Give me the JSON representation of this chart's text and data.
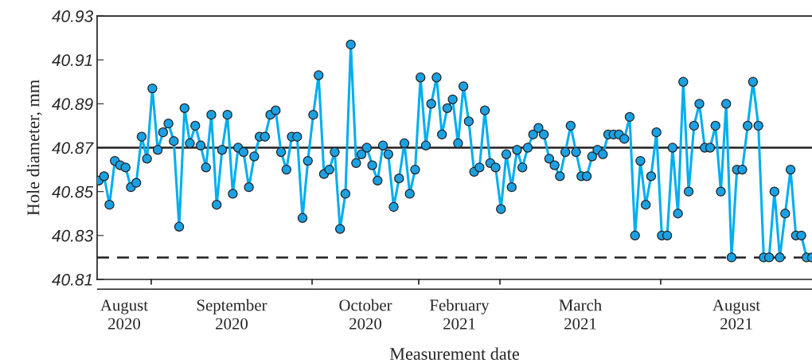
{
  "chart_data": {
    "type": "line",
    "xlabel": "Measurement date",
    "ylabel": "Hole diameter, mm",
    "categories": [
      null,
      null,
      null,
      null,
      null,
      null,
      null,
      null,
      null,
      null,
      null,
      null,
      null,
      null,
      null,
      null,
      null,
      null,
      null,
      null,
      null,
      null,
      null,
      null,
      null,
      null,
      null,
      null,
      null,
      null,
      null,
      null,
      null,
      null,
      null,
      null,
      null,
      null,
      null,
      null,
      null,
      null,
      null,
      null,
      null,
      null,
      null,
      null,
      null,
      null,
      null,
      null,
      null,
      null,
      null,
      null,
      null,
      null,
      null,
      null,
      null,
      null,
      null,
      null,
      null,
      null,
      null,
      null,
      null,
      null,
      null,
      null,
      null,
      null,
      null,
      null,
      null,
      null,
      null,
      null,
      null,
      null,
      null,
      null,
      null,
      null,
      null,
      null,
      null,
      null,
      null,
      null,
      null,
      null,
      null,
      null,
      null,
      null,
      null,
      null,
      null,
      null,
      null,
      null,
      null,
      null,
      null,
      null,
      null,
      null,
      null,
      null,
      null,
      null,
      null,
      null,
      null,
      null,
      null,
      null,
      null,
      null,
      null,
      null,
      null,
      null,
      null,
      null,
      null,
      null,
      null,
      null,
      null,
      null
    ],
    "series": [
      {
        "color": "#00aeef",
        "values": [
          40.855,
          40.857,
          40.844,
          40.864,
          40.862,
          40.861,
          40.852,
          40.854,
          40.875,
          40.865,
          40.897,
          40.869,
          40.877,
          40.881,
          40.873,
          40.834,
          40.888,
          40.872,
          40.88,
          40.871,
          40.861,
          40.885,
          40.844,
          40.869,
          40.885,
          40.849,
          40.87,
          40.868,
          40.852,
          40.866,
          40.875,
          40.875,
          40.885,
          40.887,
          40.868,
          40.86,
          40.875,
          40.875,
          40.838,
          40.864,
          40.885,
          40.903,
          40.858,
          40.86,
          40.868,
          40.833,
          40.849,
          40.917,
          40.863,
          40.867,
          40.87,
          40.862,
          40.855,
          40.871,
          40.867,
          40.843,
          40.856,
          40.872,
          40.849,
          40.86,
          40.902,
          40.871,
          40.89,
          40.902,
          40.876,
          40.888,
          40.892,
          40.872,
          40.898,
          40.882,
          40.859,
          40.861,
          40.887,
          40.863,
          40.861,
          40.842,
          40.867,
          40.852,
          40.869,
          40.861,
          40.87,
          40.876,
          40.879,
          40.876,
          40.865,
          40.862,
          40.857,
          40.868,
          40.88,
          40.868,
          40.857,
          40.857,
          40.866,
          40.869,
          40.867,
          40.876,
          40.876,
          40.876,
          40.874,
          40.884,
          40.83,
          40.864,
          40.844,
          40.857,
          40.877,
          40.83,
          40.83,
          40.87,
          40.84,
          40.9,
          40.85,
          40.88,
          40.89,
          40.87,
          40.87,
          40.88,
          40.85,
          40.89,
          40.82,
          40.86,
          40.86,
          40.88,
          40.9,
          40.88,
          40.82,
          40.82,
          40.85,
          40.82,
          40.84,
          40.86,
          40.83,
          40.83,
          40.82,
          40.82
        ]
      }
    ],
    "ylim": [
      40.81,
      40.93
    ],
    "yticks": [
      40.81,
      40.83,
      40.85,
      40.87,
      40.89,
      40.91,
      40.93
    ],
    "ref_lines": [
      {
        "axis": "y",
        "value": 40.87,
        "color": "#231f20",
        "line_style": "solid"
      },
      {
        "axis": "y",
        "value": 40.82,
        "color": "#231f20",
        "line_style": "dashed"
      }
    ],
    "annotations": [
      "August\n2020",
      "September\n2020",
      "October\n2020",
      "February\n2021",
      "March\n2021",
      "August\n2021"
    ],
    "marker": "circle",
    "grid": false,
    "legend": false
  }
}
